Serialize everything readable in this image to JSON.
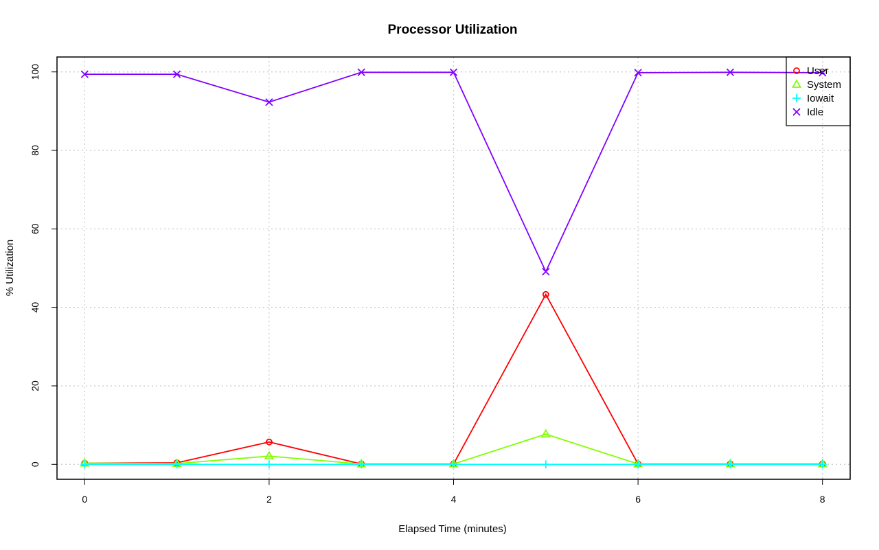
{
  "chart_data": {
    "type": "line",
    "title": "Processor Utilization",
    "xlabel": "Elapsed Time (minutes)",
    "ylabel": "% Utilization",
    "x": [
      0,
      1,
      2,
      3,
      4,
      5,
      6,
      7,
      8
    ],
    "xlim": [
      -0.3,
      8.3
    ],
    "ylim": [
      -3.8,
      103.8
    ],
    "xticks": [
      0,
      2,
      4,
      6,
      8
    ],
    "yticks": [
      0,
      20,
      40,
      60,
      80,
      100
    ],
    "grid": true,
    "legend_position": "top-right",
    "series": [
      {
        "name": "User",
        "color": "#ff0000",
        "marker": "circle",
        "values": [
          0.3,
          0.4,
          5.7,
          0.1,
          0.1,
          43.3,
          0.1,
          0.1,
          0.1
        ]
      },
      {
        "name": "System",
        "color": "#80ff00",
        "marker": "triangle",
        "values": [
          0.3,
          0.2,
          2.1,
          0.1,
          0.1,
          7.7,
          0.1,
          0.1,
          0.1
        ]
      },
      {
        "name": "Iowait",
        "color": "#00ffff",
        "marker": "plus",
        "values": [
          0.0,
          0.0,
          0.0,
          0.0,
          0.0,
          0.0,
          0.0,
          0.0,
          0.0
        ]
      },
      {
        "name": "Idle",
        "color": "#8000ff",
        "marker": "cross",
        "values": [
          99.4,
          99.4,
          92.3,
          99.9,
          99.9,
          49.1,
          99.8,
          99.9,
          99.8
        ]
      }
    ]
  }
}
